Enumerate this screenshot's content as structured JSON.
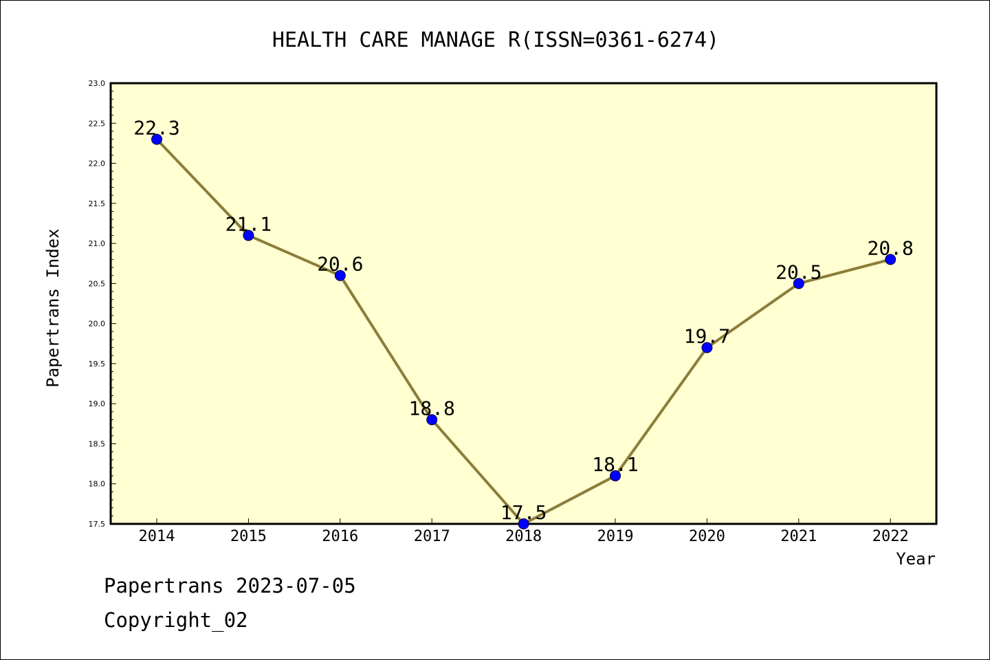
{
  "chart_data": {
    "type": "line",
    "title": "HEALTH CARE MANAGE R(ISSN=0361-6274)",
    "xlabel": "Year",
    "ylabel": "Papertrans Index",
    "categories": [
      "2014",
      "2015",
      "2016",
      "2017",
      "2018",
      "2019",
      "2020",
      "2021",
      "2022"
    ],
    "series": [
      {
        "values": [
          22.3,
          21.1,
          20.6,
          18.8,
          17.5,
          18.1,
          19.7,
          20.5,
          20.8
        ]
      }
    ],
    "data_labels": [
      "22.3",
      "21.1",
      "20.6",
      "18.8",
      "17.5",
      "18.1",
      "19.7",
      "20.5",
      "20.8"
    ],
    "ylim": [
      17.5,
      23.0
    ],
    "y_ticks": [
      "17.5",
      "18.0",
      "18.5",
      "19.0",
      "19.5",
      "20.0",
      "20.5",
      "21.0",
      "21.5",
      "22.0",
      "22.5",
      "23.0"
    ],
    "grid": false,
    "colors": {
      "plot_background": "#ffffd2",
      "line": "#8b7d3a",
      "marker": "#0000ff",
      "frame": "#000000"
    }
  },
  "footer": {
    "line1": "Papertrans 2023-07-05",
    "line2": "Copyright_02"
  }
}
